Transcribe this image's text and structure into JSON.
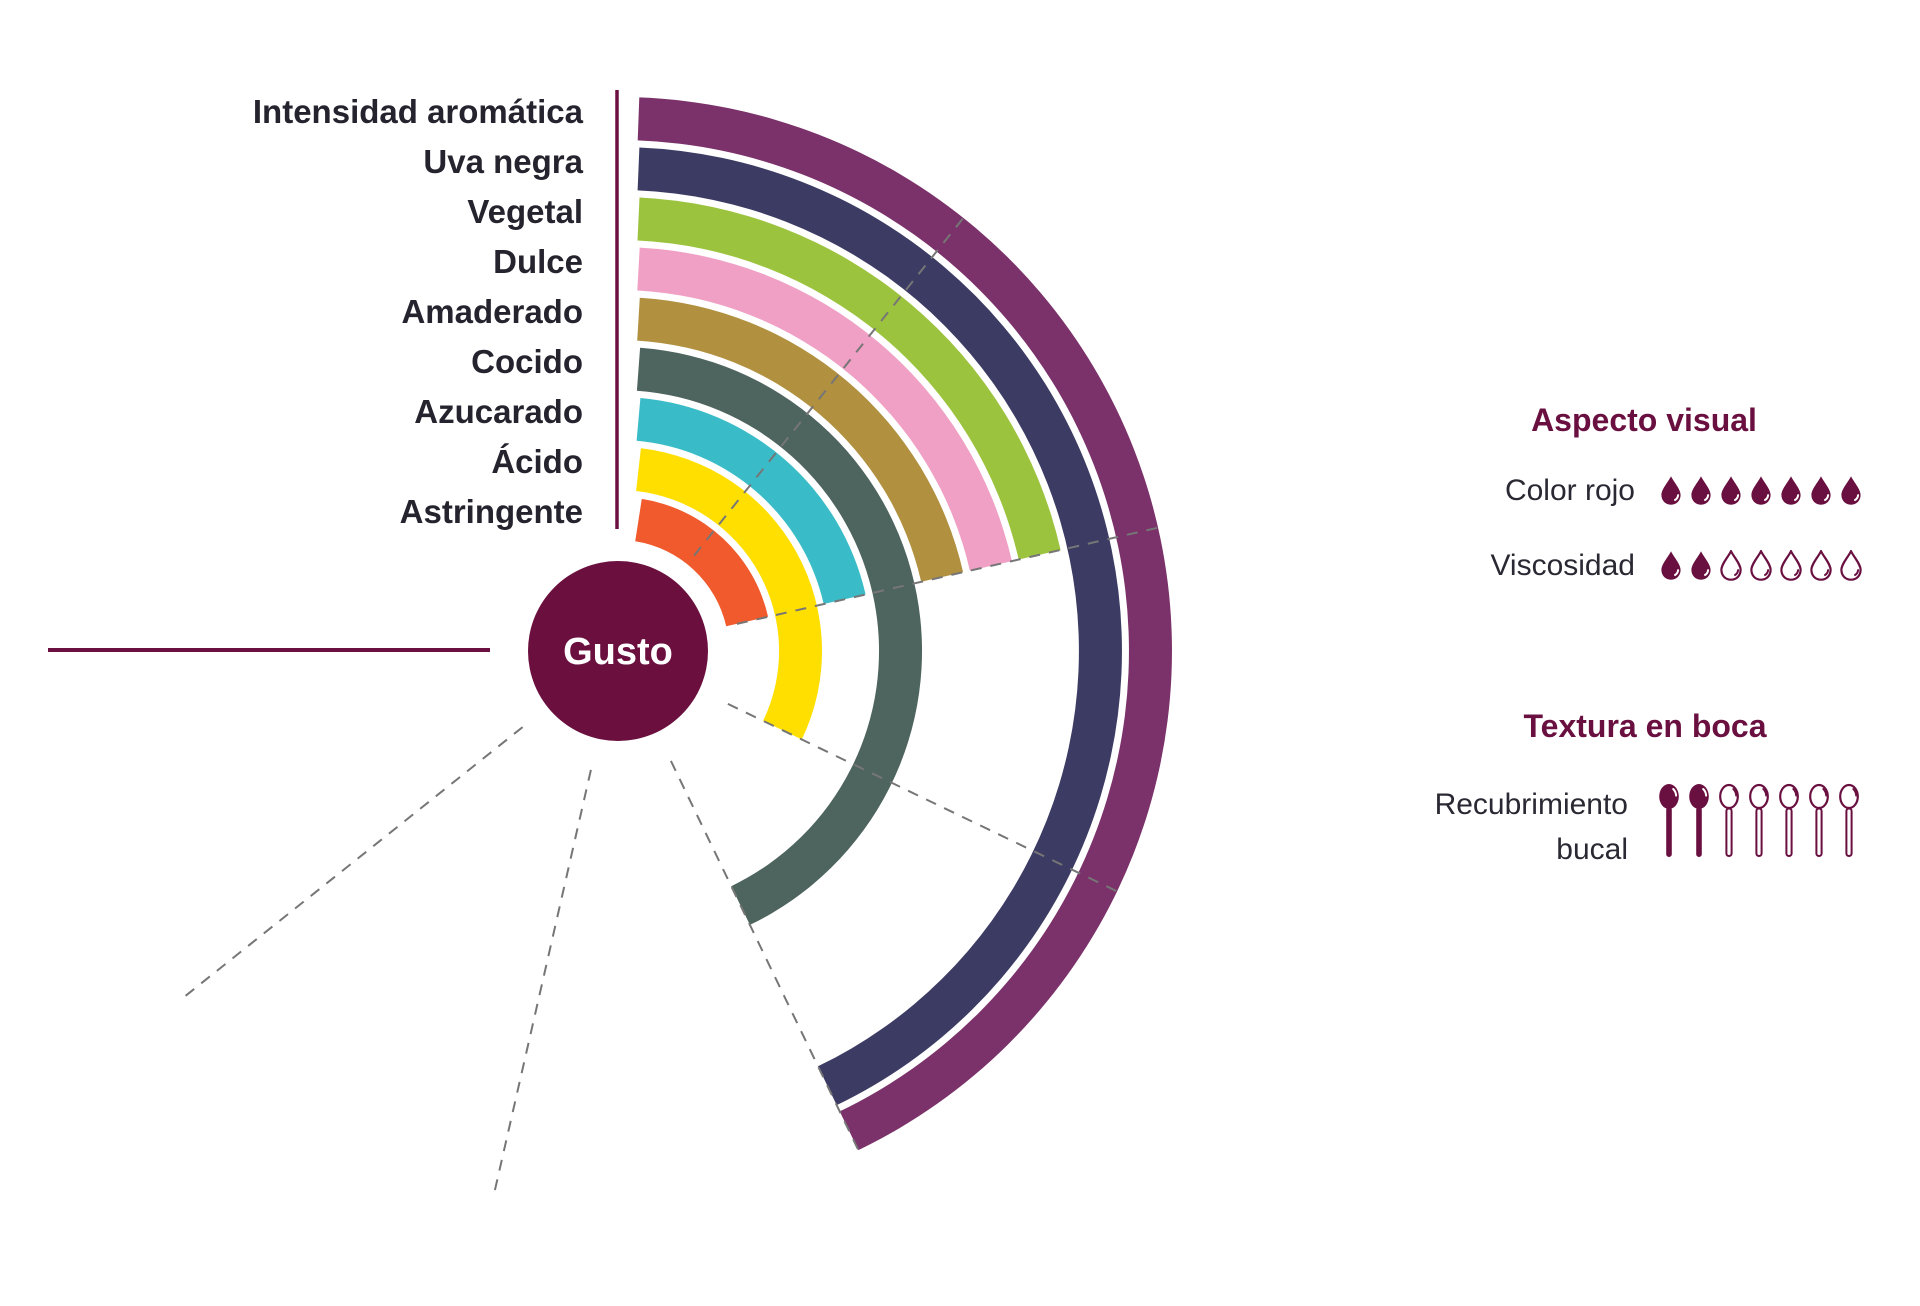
{
  "chart_data": {
    "type": "radial-bar",
    "title": "Gusto",
    "categories": [
      "Intensidad aromática",
      "Uva negra",
      "Vegetal",
      "Dulce",
      "Amaderado",
      "Cocido",
      "Azucarado",
      "Ácido",
      "Astringente"
    ],
    "values": [
      4,
      4,
      2,
      2,
      2,
      4,
      2,
      3,
      2
    ],
    "colors": [
      "#7B3169",
      "#3C3B63",
      "#9CC33E",
      "#F0A0C4",
      "#B1903F",
      "#4E645E",
      "#3ABCC8",
      "#FFDF00",
      "#F15A2D"
    ],
    "value_axis": {
      "min": 0,
      "max": 7,
      "total_angle_deg": 270,
      "gridline_values": [
        1,
        2,
        3,
        4,
        5,
        6
      ],
      "grid_on": true
    },
    "center_color": "#6B0F3E",
    "axis_color": "#6B1040",
    "gridline_color": "#767676",
    "label_color": "#25242E"
  },
  "panels": {
    "aspecto": {
      "title": "Aspecto visual",
      "rows": [
        {
          "label": "Color rojo",
          "icon": "drop",
          "value": 7,
          "max": 7
        },
        {
          "label": "Viscosidad",
          "icon": "drop",
          "value": 2,
          "max": 7
        }
      ]
    },
    "textura": {
      "title": "Textura en boca",
      "rows": [
        {
          "label_line1": "Recubrimiento",
          "label_line2": "bucal",
          "icon": "spoon",
          "value": 2,
          "max": 7
        }
      ]
    },
    "icon_color": "#6A1040"
  }
}
